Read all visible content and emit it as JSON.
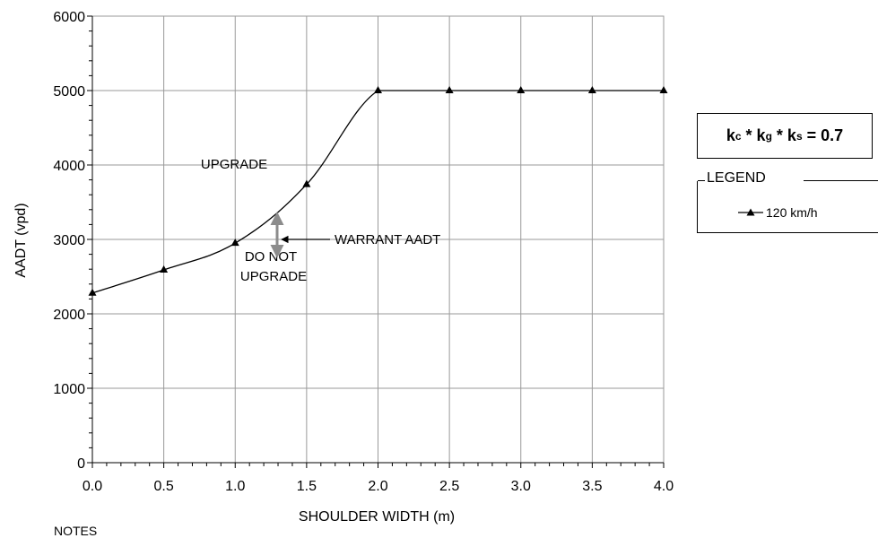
{
  "chart_data": {
    "type": "line",
    "xlabel": "SHOULDER WIDTH (m)",
    "ylabel": "AADT (vpd)",
    "xlim": [
      0,
      4
    ],
    "ylim": [
      0,
      6000
    ],
    "x_ticks": [
      "0.0",
      "0.5",
      "1.0",
      "1.5",
      "2.0",
      "2.5",
      "3.0",
      "3.5",
      "4.0"
    ],
    "y_ticks": [
      "0",
      "1000",
      "2000",
      "3000",
      "4000",
      "5000",
      "6000"
    ],
    "grid": true,
    "series": [
      {
        "name": "120 km/h",
        "marker": "triangle",
        "color": "#000000",
        "x": [
          0.0,
          0.5,
          1.0,
          1.5,
          2.0,
          2.5,
          3.0,
          3.5,
          4.0
        ],
        "y": [
          2280,
          2590,
          2950,
          3740,
          5000,
          5000,
          5000,
          5000,
          5000
        ]
      }
    ],
    "annotations": {
      "upgrade": "UPGRADE",
      "do_not_line1": "DO NOT",
      "do_not_line2": "UPGRADE",
      "warrant": "WARRANT AADT"
    },
    "factor_box": {
      "k1": "k",
      "k1_sub": "c",
      "k2": "k",
      "k2_sub": "g",
      "k3": "k",
      "k3_sub": "s",
      "value": "0.7"
    },
    "legend": {
      "title": "LEGEND",
      "placement": "right",
      "entry": "120 km/h"
    },
    "notes_label": "NOTES"
  }
}
